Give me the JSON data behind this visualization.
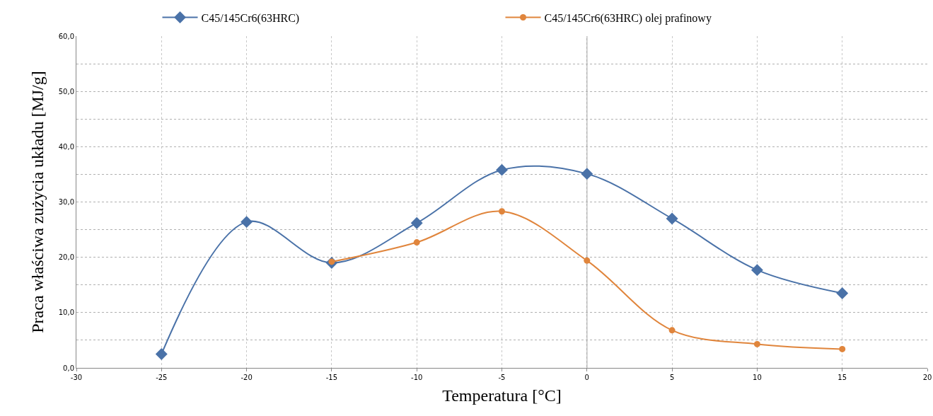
{
  "chart_data": {
    "type": "line",
    "xlabel": "Temperatura [°C]",
    "ylabel": "Praca właściwa zużycia układu [MJ/g]",
    "x": [
      -25,
      -20,
      -15,
      -10,
      -5,
      0,
      5,
      10,
      15
    ],
    "series": [
      {
        "name": "C45/145Cr6(63HRC)",
        "color": "#4a72a8",
        "marker": "diamond",
        "values": [
          2.5,
          26.4,
          19.0,
          26.2,
          35.8,
          35.1,
          27.0,
          17.7,
          13.5
        ]
      },
      {
        "name": "C45/145Cr6(63HRC) olej prafinowy",
        "color": "#e0853c",
        "marker": "circle",
        "values": [
          null,
          null,
          19.2,
          22.7,
          28.3,
          19.4,
          6.8,
          4.3,
          3.4
        ]
      }
    ],
    "xlim": [
      -30,
      20
    ],
    "xticks": [
      -30,
      -25,
      -20,
      -15,
      -10,
      -5,
      0,
      5,
      10,
      15,
      20
    ],
    "ylim": [
      0,
      60
    ],
    "yticks": [
      {
        "value": 0,
        "label": "0,0"
      },
      {
        "value": 5,
        "label": null
      },
      {
        "value": 10,
        "label": "10,0"
      },
      {
        "value": 15,
        "label": null
      },
      {
        "value": 20,
        "label": "20,0"
      },
      {
        "value": 25,
        "label": null
      },
      {
        "value": 30,
        "label": "30,0"
      },
      {
        "value": 35,
        "label": null
      },
      {
        "value": 40,
        "label": "40,0"
      },
      {
        "value": 45,
        "label": null
      },
      {
        "value": 50,
        "label": "50,0"
      },
      {
        "value": 55,
        "label": null
      },
      {
        "value": 60,
        "label": "60,0"
      }
    ],
    "ref_lines": [
      {
        "axis": "x",
        "value": 0,
        "label": null,
        "color": "#8c8c8c",
        "line_style": "solid"
      }
    ],
    "grid": true,
    "legend": "top",
    "line_style": "solid"
  }
}
